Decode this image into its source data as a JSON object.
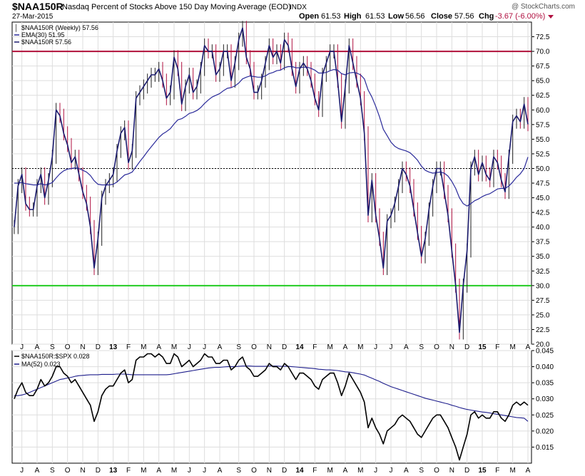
{
  "header": {
    "symbol": "$NAA150R",
    "description": "Nasdaq Percent of Stocks Above 150 Day Moving Average (EOD)",
    "exchange": "INDX",
    "date": "27-Mar-2015",
    "open_label": "Open",
    "open": "61.53",
    "high_label": "High",
    "high": "61.53",
    "low_label": "Low",
    "low": "56.56",
    "close_label": "Close",
    "close": "57.56",
    "chg_label": "Chg",
    "chg": "-3.67 (-6.00%)",
    "watermark": "@ StockCharts.com"
  },
  "colors": {
    "price": "#1a1a6e",
    "ema": "#2a2a9a",
    "down_bar": "#b01040",
    "line_70": "#b0103a",
    "line_30": "#22cc22",
    "ratio": "#000000",
    "ma": "#1e1e8c",
    "grid": "#dddddd"
  },
  "chart_data": [
    {
      "type": "line",
      "legend": [
        "$NAA150R (Weekly) 57.56",
        "EMA(30) 51.95",
        "$NAA150R 57.56"
      ],
      "ylim": [
        20,
        75
      ],
      "yticks": [
        "20.0",
        "22.5",
        "25.0",
        "27.5",
        "30.0",
        "32.5",
        "35.0",
        "37.5",
        "40.0",
        "42.5",
        "45.0",
        "47.5",
        "50.0",
        "52.5",
        "55.0",
        "57.5",
        "60.0",
        "62.5",
        "65.0",
        "67.5",
        "70.0",
        "72.5"
      ],
      "xticks": [
        "J",
        "A",
        "S",
        "O",
        "N",
        "D",
        "13",
        "F",
        "M",
        "A",
        "M",
        "J",
        "J",
        "A",
        "S",
        "O",
        "N",
        "D",
        "14",
        "F",
        "M",
        "A",
        "M",
        "J",
        "J",
        "A",
        "S",
        "O",
        "N",
        "D",
        "15",
        "F",
        "M",
        "A"
      ],
      "reference_lines": [
        70,
        50,
        30
      ],
      "series": [
        {
          "name": "$NAA150R",
          "values": [
            40,
            47,
            49,
            44,
            43,
            43,
            47,
            49,
            45,
            48,
            52,
            60,
            59,
            56,
            54,
            51,
            52,
            49,
            46,
            44,
            40,
            33,
            38,
            45,
            47,
            48,
            49,
            53,
            56,
            57,
            51,
            53,
            62,
            63,
            64,
            65,
            66,
            66,
            67,
            65,
            62,
            63,
            69,
            67,
            61,
            64,
            66,
            63,
            64,
            67,
            71,
            70,
            70,
            66,
            67,
            70,
            70,
            65,
            68,
            72,
            74,
            69,
            67,
            63,
            63,
            65,
            68,
            71,
            69,
            70,
            68,
            72,
            71,
            67,
            64,
            67,
            68,
            67,
            65,
            62,
            60,
            66,
            68,
            70,
            70,
            65,
            58,
            64,
            71,
            68,
            65,
            62,
            56,
            42,
            48,
            42,
            38,
            33,
            41,
            42,
            44,
            47,
            50,
            49,
            47,
            43,
            39,
            35,
            38,
            43,
            47,
            50,
            50,
            46,
            42,
            36,
            30,
            22,
            30,
            36,
            50,
            52,
            49,
            51,
            49,
            48,
            52,
            51,
            48,
            46,
            52,
            58,
            59,
            58,
            61,
            57.56
          ]
        },
        {
          "name": "EMA(30)",
          "values": [
            47.5,
            47.5,
            47.6,
            47.4,
            47.3,
            47.2,
            47.2,
            47.4,
            47.2,
            47.3,
            47.6,
            48.4,
            49.1,
            49.6,
            49.9,
            50,
            50.1,
            50,
            49.7,
            49.4,
            48.8,
            47.9,
            47.3,
            47.2,
            47.2,
            47.2,
            47.3,
            47.7,
            48.3,
            48.9,
            49.1,
            49.4,
            50.3,
            51.2,
            52,
            52.9,
            53.7,
            54.5,
            55.3,
            55.9,
            56.3,
            56.8,
            57.6,
            58.3,
            58.5,
            58.9,
            59.4,
            59.6,
            59.9,
            60.4,
            61.1,
            61.7,
            62.2,
            62.5,
            62.8,
            63.3,
            63.7,
            63.8,
            64.1,
            64.6,
            65.3,
            65.6,
            65.8,
            65.7,
            65.6,
            65.6,
            65.8,
            66.2,
            66.4,
            66.7,
            66.8,
            67.2,
            67.4,
            67.4,
            67.2,
            67.2,
            67.3,
            67.3,
            67.1,
            66.8,
            66.3,
            66.3,
            66.4,
            66.7,
            66.9,
            66.8,
            66.2,
            66,
            66.3,
            66.4,
            66.3,
            66,
            65.3,
            63.4,
            62.2,
            60.6,
            58.8,
            56.7,
            55.6,
            54.5,
            53.8,
            53.4,
            53.2,
            53,
            52.7,
            52.1,
            51.4,
            50.4,
            49.7,
            49.4,
            49.2,
            49.3,
            49.4,
            49.2,
            48.7,
            47.8,
            46.6,
            45,
            44,
            43.6,
            44,
            44.5,
            44.8,
            45.2,
            45.5,
            45.7,
            46.1,
            46.5,
            46.6,
            46.6,
            47,
            47.7,
            48.5,
            49.1,
            50,
            51.95
          ]
        }
      ]
    },
    {
      "type": "line",
      "legend": [
        "$NAA150R:$SPX 0.028",
        "MA(52) 0.023"
      ],
      "ylim": [
        0.01,
        0.045
      ],
      "yticks": [
        "0.015",
        "0.020",
        "0.025",
        "0.030",
        "0.035",
        "0.040",
        "0.045"
      ],
      "series": [
        {
          "name": "$NAA150R:$SPX",
          "values": [
            0.03,
            0.033,
            0.035,
            0.032,
            0.031,
            0.031,
            0.033,
            0.036,
            0.034,
            0.035,
            0.037,
            0.04,
            0.04,
            0.038,
            0.037,
            0.035,
            0.036,
            0.034,
            0.032,
            0.03,
            0.028,
            0.023,
            0.026,
            0.031,
            0.033,
            0.034,
            0.034,
            0.036,
            0.038,
            0.039,
            0.035,
            0.036,
            0.042,
            0.043,
            0.043,
            0.044,
            0.044,
            0.043,
            0.044,
            0.043,
            0.041,
            0.041,
            0.044,
            0.043,
            0.04,
            0.041,
            0.042,
            0.04,
            0.041,
            0.042,
            0.044,
            0.043,
            0.043,
            0.041,
            0.041,
            0.042,
            0.042,
            0.039,
            0.04,
            0.042,
            0.043,
            0.04,
            0.039,
            0.037,
            0.037,
            0.038,
            0.039,
            0.041,
            0.04,
            0.04,
            0.039,
            0.041,
            0.04,
            0.038,
            0.036,
            0.038,
            0.038,
            0.037,
            0.036,
            0.034,
            0.033,
            0.036,
            0.037,
            0.038,
            0.038,
            0.035,
            0.031,
            0.034,
            0.038,
            0.036,
            0.034,
            0.032,
            0.029,
            0.021,
            0.024,
            0.021,
            0.019,
            0.016,
            0.02,
            0.021,
            0.022,
            0.024,
            0.025,
            0.024,
            0.023,
            0.021,
            0.019,
            0.018,
            0.02,
            0.022,
            0.024,
            0.025,
            0.025,
            0.023,
            0.021,
            0.018,
            0.015,
            0.011,
            0.015,
            0.019,
            0.025,
            0.026,
            0.024,
            0.025,
            0.024,
            0.024,
            0.026,
            0.026,
            0.024,
            0.023,
            0.025,
            0.028,
            0.029,
            0.028,
            0.029,
            0.028
          ]
        },
        {
          "name": "MA(52)",
          "values": [
            0.031,
            0.031,
            0.0312,
            0.0315,
            0.032,
            0.0325,
            0.033,
            0.0335,
            0.034,
            0.0345,
            0.035,
            0.0355,
            0.036,
            0.0362,
            0.0365,
            0.0367,
            0.037,
            0.0372,
            0.0373,
            0.0374,
            0.0375,
            0.0375,
            0.0375,
            0.0376,
            0.0376,
            0.0376,
            0.0376,
            0.0377,
            0.0377,
            0.0377,
            0.0376,
            0.0375,
            0.0375,
            0.0375,
            0.0375,
            0.0375,
            0.0375,
            0.0375,
            0.0375,
            0.0375,
            0.0375,
            0.0376,
            0.0378,
            0.038,
            0.0382,
            0.0384,
            0.0386,
            0.0388,
            0.039,
            0.0392,
            0.0394,
            0.0396,
            0.0397,
            0.0398,
            0.0398,
            0.0399,
            0.04,
            0.04,
            0.04,
            0.0401,
            0.0402,
            0.0402,
            0.0402,
            0.0401,
            0.0401,
            0.0401,
            0.0401,
            0.0402,
            0.0402,
            0.0402,
            0.0401,
            0.0401,
            0.0401,
            0.04,
            0.0399,
            0.0398,
            0.0397,
            0.0396,
            0.0395,
            0.0394,
            0.0392,
            0.0391,
            0.039,
            0.039,
            0.0389,
            0.0388,
            0.0386,
            0.0384,
            0.0383,
            0.0381,
            0.0379,
            0.0377,
            0.0374,
            0.0369,
            0.0364,
            0.0359,
            0.0354,
            0.0348,
            0.0343,
            0.0338,
            0.0334,
            0.033,
            0.0326,
            0.0322,
            0.0318,
            0.0314,
            0.031,
            0.0306,
            0.0302,
            0.0299,
            0.0296,
            0.0293,
            0.029,
            0.0287,
            0.0284,
            0.028,
            0.0277,
            0.0273,
            0.027,
            0.0267,
            0.0265,
            0.0263,
            0.0261,
            0.0259,
            0.0258,
            0.0256,
            0.0254,
            0.0252,
            0.025,
            0.0248,
            0.0246,
            0.0244,
            0.0242,
            0.0241,
            0.024,
            0.023
          ]
        }
      ]
    }
  ]
}
